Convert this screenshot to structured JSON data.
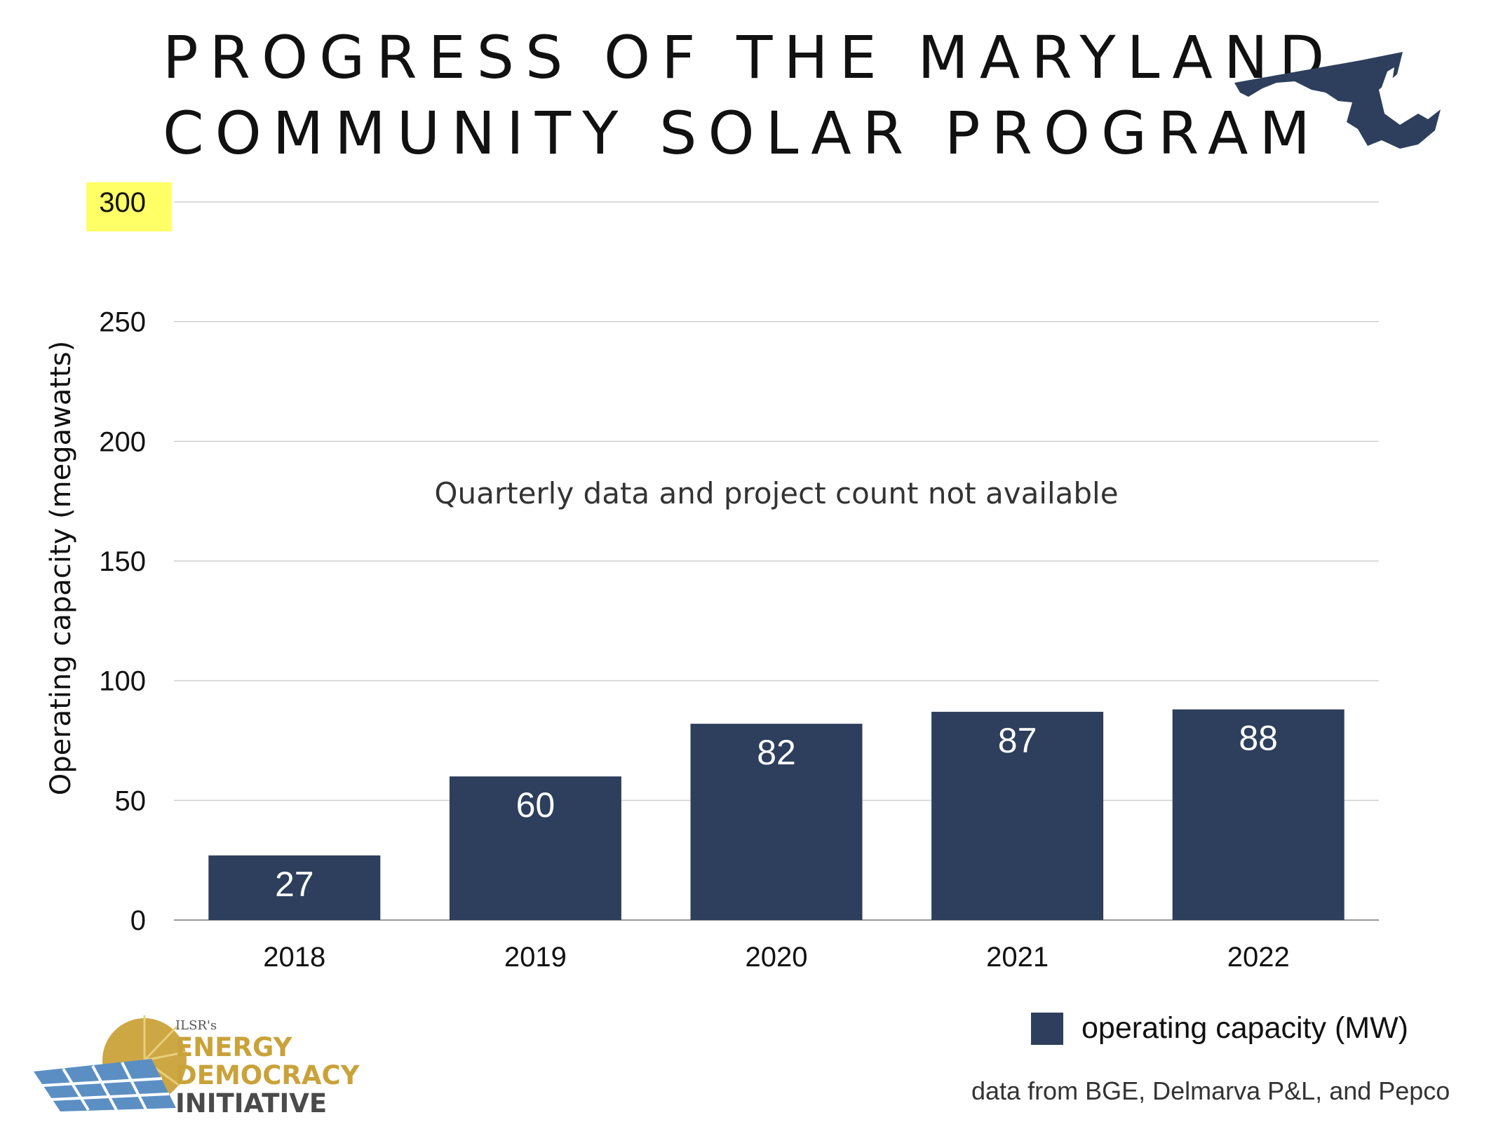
{
  "title_lines": [
    "PROGRESS OF THE MARYLAND",
    "COMMUNITY SOLAR PROGRAM"
  ],
  "icons": {
    "state_map": "maryland-map-icon",
    "logo": "ilsr-solar-logo-icon"
  },
  "colors": {
    "bar": "#2d3f5c",
    "grid": "#cfcfcf",
    "highlight": "#ffff66",
    "logo_gold": "#c9a23a",
    "logo_blue": "#5b8fc4"
  },
  "chart_data": {
    "type": "bar",
    "categories": [
      "2018",
      "2019",
      "2020",
      "2021",
      "2022"
    ],
    "series": [
      {
        "name": "operating capacity (MW)",
        "values": [
          27,
          60,
          82,
          87,
          88
        ]
      }
    ],
    "data_labels": [
      "27",
      "60",
      "82",
      "87",
      "88"
    ],
    "ylabel": "Operating capacity (megawatts)",
    "xlabel": "",
    "ylim": [
      0,
      300
    ],
    "yticks": [
      0,
      50,
      100,
      150,
      200,
      250,
      300
    ],
    "highlighted_tick": 300,
    "annotation": "Quarterly data and project count not available",
    "grid": true,
    "legend_position": "bottom-right"
  },
  "legend": {
    "label": "operating capacity (MW)"
  },
  "source_note": "data from BGE, Delmarva P&L, and Pepco",
  "logo": {
    "org": "ILSR's",
    "line1": "ENERGY",
    "line2": "DEMOCRACY",
    "line3": "INITIATIVE"
  }
}
